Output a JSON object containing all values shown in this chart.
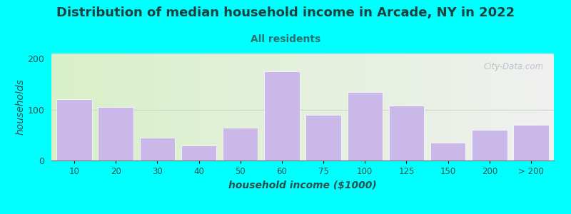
{
  "title": "Distribution of median household income in Arcade, NY in 2022",
  "subtitle": "All residents",
  "xlabel": "household income ($1000)",
  "ylabel": "households",
  "bar_labels": [
    "10",
    "20",
    "30",
    "40",
    "50",
    "60",
    "75",
    "100",
    "125",
    "150",
    "200",
    "> 200"
  ],
  "bar_values": [
    120,
    105,
    45,
    30,
    65,
    175,
    90,
    135,
    108,
    35,
    60,
    70
  ],
  "bar_color": "#c9b8e8",
  "bar_edgecolor": "#ffffff",
  "ylim": [
    0,
    210
  ],
  "yticks": [
    0,
    100,
    200
  ],
  "background_color": "#00ffff",
  "plot_bg_gradient_left": "#d8f0c8",
  "plot_bg_gradient_right": "#f0f0f0",
  "title_fontsize": 13,
  "title_color": "#1a4040",
  "subtitle_fontsize": 10,
  "subtitle_color": "#2a7070",
  "axis_label_fontsize": 10,
  "axis_label_color": "#2a5050",
  "tick_label_color": "#2a5050",
  "watermark_text": "City-Data.com",
  "watermark_color": "#b8b8c8",
  "grid_color": "#c8d8c8",
  "bar_left_edges": [
    0,
    1,
    2,
    3,
    4,
    5,
    6,
    7,
    8,
    9,
    10,
    11
  ],
  "bar_widths_units": [
    1,
    1,
    1,
    1,
    1,
    1,
    1,
    1,
    1,
    1,
    1,
    1
  ],
  "n_bars": 12
}
